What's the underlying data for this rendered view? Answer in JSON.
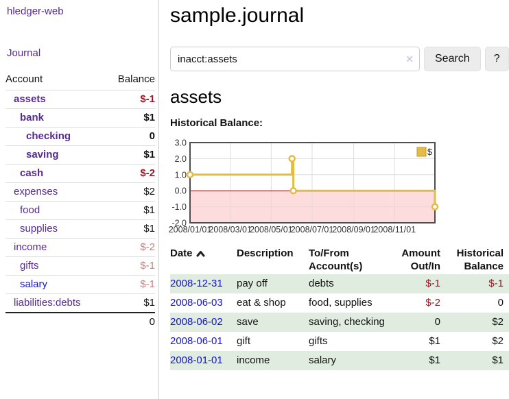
{
  "colors": {
    "purple-link": "#562a94",
    "blue-link": "#1414d2",
    "neg-strong": "#9e1626",
    "neg-muted": "#c08080",
    "row-green": "#dfecdf",
    "chart-pink": "#fcdcdc",
    "gold": "#e3bc45",
    "gold-dark": "#c39b23",
    "zero-line": "#990000",
    "grid": "#dddddd",
    "chart-border": "#4d4d4d",
    "button-bg": "#ececec",
    "divider": "#cccccc",
    "row-line": "#dddddd"
  },
  "brand": "hledger-web",
  "nav": {
    "journal": "Journal"
  },
  "sidebar": {
    "header": {
      "account": "Account",
      "balance": "Balance"
    },
    "accounts": [
      {
        "name": "assets",
        "level": 1,
        "emph": true,
        "balance": "$-1",
        "balance_style": "neg-strong",
        "link": "purple"
      },
      {
        "name": "bank",
        "level": 2,
        "emph": true,
        "balance": "$1",
        "balance_style": "strong",
        "link": "purple"
      },
      {
        "name": "checking",
        "level": 3,
        "emph": true,
        "balance": "0",
        "balance_style": "strong",
        "link": "purple"
      },
      {
        "name": "saving",
        "level": 3,
        "emph": true,
        "balance": "$1",
        "balance_style": "strong",
        "link": "purple"
      },
      {
        "name": "cash",
        "level": 2,
        "emph": true,
        "balance": "$-2",
        "balance_style": "neg-strong",
        "link": "purple"
      },
      {
        "name": "expenses",
        "level": 1,
        "emph": false,
        "balance": "$2",
        "balance_style": "plain",
        "link": "purple"
      },
      {
        "name": "food",
        "level": 2,
        "emph": false,
        "balance": "$1",
        "balance_style": "plain",
        "link": "purple"
      },
      {
        "name": "supplies",
        "level": 2,
        "emph": false,
        "balance": "$1",
        "balance_style": "plain",
        "link": "purple"
      },
      {
        "name": "income",
        "level": 1,
        "emph": false,
        "balance": "$-2",
        "balance_style": "neg-muted",
        "link": "purple"
      },
      {
        "name": "gifts",
        "level": 2,
        "emph": false,
        "balance": "$-1",
        "balance_style": "neg-muted",
        "link": "purple"
      },
      {
        "name": "salary",
        "level": 2,
        "emph": false,
        "balance": "$-1",
        "balance_style": "neg-muted",
        "link": "blue"
      },
      {
        "name": "liabilities:debts",
        "level": 1,
        "emph": false,
        "balance": "$1",
        "balance_style": "plain",
        "link": "purple"
      }
    ],
    "total": "0"
  },
  "main": {
    "title": "sample.journal",
    "search": {
      "value": "inacct:assets",
      "clear": "✕",
      "button": "Search",
      "help": "?"
    },
    "heading": "assets",
    "chart_title": "Historical Balance:"
  },
  "chart_data": {
    "type": "line",
    "step": true,
    "title": "Historical Balance:",
    "x_range": [
      "2008-01-01",
      "2008-12-31"
    ],
    "ylim": [
      -2,
      3
    ],
    "yticks": [
      {
        "label": "3.0",
        "value": 3
      },
      {
        "label": "2.0",
        "value": 2
      },
      {
        "label": "1.0",
        "value": 1
      },
      {
        "label": "0.0",
        "value": 0
      },
      {
        "label": "-1.0",
        "value": -1
      },
      {
        "label": "-2.0",
        "value": -2
      }
    ],
    "xticks": [
      {
        "label": "2008/01/01",
        "date": "2008-01-01"
      },
      {
        "label": "2008/03/01",
        "date": "2008-03-01"
      },
      {
        "label": "2008/05/01",
        "date": "2008-05-01"
      },
      {
        "label": "2008/07/01",
        "date": "2008-07-01"
      },
      {
        "label": "2008/09/01",
        "date": "2008-09-01"
      },
      {
        "label": "2008/11/01",
        "date": "2008-11-01"
      }
    ],
    "series": [
      {
        "name": "$",
        "points": [
          {
            "date": "2008-01-01",
            "value": 1
          },
          {
            "date": "2008-06-01",
            "value": 2
          },
          {
            "date": "2008-06-03",
            "value": 0
          },
          {
            "date": "2008-12-31",
            "value": -1
          }
        ]
      }
    ],
    "legend": {
      "label": "$",
      "position": "top-right"
    },
    "negative_region_shaded": true,
    "grid": true
  },
  "register": {
    "columns": [
      {
        "line1": "Date",
        "line2": "",
        "align": "left",
        "sortable": true
      },
      {
        "line1": "Description",
        "line2": "",
        "align": "left",
        "sortable": false
      },
      {
        "line1": "To/From",
        "line2": "Account(s)",
        "align": "left",
        "sortable": false
      },
      {
        "line1": "Amount",
        "line2": "Out/In",
        "align": "right",
        "sortable": false
      },
      {
        "line1": "Historical",
        "line2": "Balance",
        "align": "right",
        "sortable": false
      }
    ],
    "rows": [
      {
        "date": "2008-12-31",
        "description": "pay off",
        "accounts": "debts",
        "amount": "$-1",
        "balance": "$-1",
        "shaded": true
      },
      {
        "date": "2008-06-03",
        "description": "eat & shop",
        "accounts": "food, supplies",
        "amount": "$-2",
        "balance": "0",
        "shaded": false
      },
      {
        "date": "2008-06-02",
        "description": "save",
        "accounts": "saving, checking",
        "amount": "0",
        "balance": "$2",
        "shaded": true
      },
      {
        "date": "2008-06-01",
        "description": "gift",
        "accounts": "gifts",
        "amount": "$1",
        "balance": "$2",
        "shaded": false
      },
      {
        "date": "2008-01-01",
        "description": "income",
        "accounts": "salary",
        "amount": "$1",
        "balance": "$1",
        "shaded": true
      }
    ]
  }
}
